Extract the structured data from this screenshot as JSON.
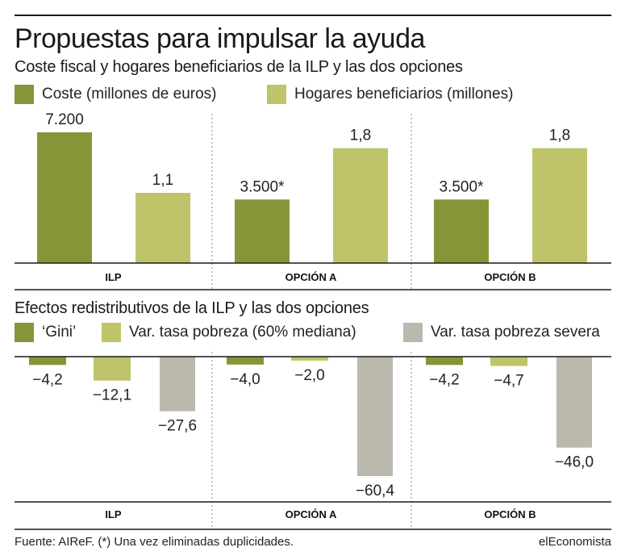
{
  "header": {
    "title": "Propuestas para impulsar la ayuda"
  },
  "colors": {
    "dark_green": "#889438",
    "light_green": "#bfc46a",
    "gray": "#bbb8ae",
    "axis": "#1a1a1a",
    "separator": "#888888"
  },
  "legend1": {
    "items": [
      {
        "label": "Coste (millones de euros)",
        "color": "#889438"
      },
      {
        "label": "Hogares beneficiarios (millones)",
        "color": "#bfc46a"
      }
    ]
  },
  "legend2": {
    "items": [
      {
        "label": "‘Gini’",
        "color": "#889438"
      },
      {
        "label": "Var. tasa pobreza (60% mediana)",
        "color": "#bfc46a"
      },
      {
        "label": "Var. tasa pobreza severa",
        "color": "#bbb8ae"
      }
    ]
  },
  "chart_data": [
    {
      "type": "bar",
      "subtitle": "Coste fiscal y hogares beneficiarios de la ILP y las dos opciones",
      "categories": [
        "ILP",
        "OPCIÓN A",
        "OPCIÓN B"
      ],
      "series": [
        {
          "name": "Coste (millones de euros)",
          "values": [
            7200,
            3500,
            3500
          ],
          "labels": [
            "7.200",
            "3.500*",
            "3.500*"
          ],
          "color": "#889438"
        },
        {
          "name": "Hogares beneficiarios (millones)",
          "values": [
            1.1,
            1.8,
            1.8
          ],
          "labels": [
            "1,1",
            "1,8",
            "1,8"
          ],
          "color": "#bfc46a"
        }
      ],
      "note": "Scale relative to ILP cost; household bars share their own visual scale",
      "grid": false,
      "legend": "top-left"
    },
    {
      "type": "bar",
      "subtitle": "Efectos redistributivos de la ILP y las dos opciones",
      "categories": [
        "ILP",
        "OPCIÓN A",
        "OPCIÓN B"
      ],
      "series": [
        {
          "name": "‘Gini’",
          "values": [
            -4.2,
            -4.0,
            -4.2
          ],
          "labels": [
            "−4,2",
            "−4,0",
            "−4,2"
          ],
          "color": "#889438"
        },
        {
          "name": "Var. tasa pobreza (60% mediana)",
          "values": [
            -12.1,
            -2.0,
            -4.7
          ],
          "labels": [
            "−12,1",
            "−2,0",
            "−4,7"
          ],
          "color": "#bfc46a"
        },
        {
          "name": "Var. tasa pobreza severa",
          "values": [
            -27.6,
            -60.4,
            -46.0
          ],
          "labels": [
            "−27,6",
            "−60,4",
            "−46,0"
          ],
          "color": "#bbb8ae"
        }
      ],
      "ylim": [
        -65,
        0
      ],
      "grid": false,
      "legend": "top-left"
    }
  ],
  "footer": {
    "source": "Fuente: AIReF. (*) Una vez eliminadas duplicidades.",
    "brand": "elEconomista"
  }
}
